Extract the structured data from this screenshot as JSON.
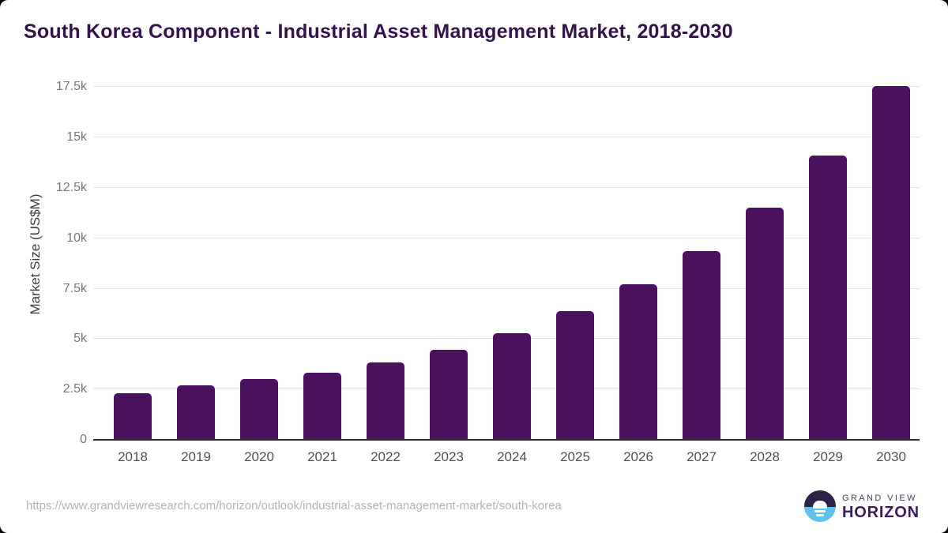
{
  "page": {
    "title": "South Korea Component - Industrial Asset Management Market, 2018-2030"
  },
  "chart_data": {
    "type": "bar",
    "title": "South Korea Component - Industrial Asset Management Market, 2018-2030",
    "categories": [
      "2018",
      "2019",
      "2020",
      "2021",
      "2022",
      "2023",
      "2024",
      "2025",
      "2026",
      "2027",
      "2028",
      "2029",
      "2030"
    ],
    "values": [
      2300,
      2700,
      3000,
      3350,
      3850,
      4450,
      5300,
      6400,
      7700,
      9350,
      11500,
      14100,
      17550
    ],
    "series_name": "Market Size",
    "xlabel": "",
    "ylabel": "Market Size (US$M)",
    "ylim": [
      0,
      17500
    ],
    "yticks": {
      "values": [
        0,
        2500,
        5000,
        7500,
        10000,
        12500,
        15000,
        17500
      ],
      "labels": [
        "0",
        "2.5k",
        "5k",
        "7.5k",
        "10k",
        "12.5k",
        "15k",
        "17.5k"
      ]
    },
    "grid": true,
    "legend": false
  },
  "footer": {
    "source_url": "https://www.grandviewresearch.com/horizon/outlook/industrial-asset-management-market/south-korea",
    "logo": {
      "brand_top": "GRAND VIEW",
      "brand_bottom": "HORIZON"
    }
  },
  "colors": {
    "title": "#33124d",
    "bar": "#4a115e",
    "gridline": "#e2e2e2",
    "axis_line": "#2e2e2e",
    "y_tick_label": "#757575",
    "x_tick_label": "#4f4f4f",
    "y_axis_title": "#3c3c3c",
    "source_url": "#b4b4b4",
    "logo_dark": "#2e2247",
    "logo_blue": "#5cc3ef",
    "logo_text_top": "#4b3a68",
    "logo_text_bottom": "#3c1b60"
  }
}
